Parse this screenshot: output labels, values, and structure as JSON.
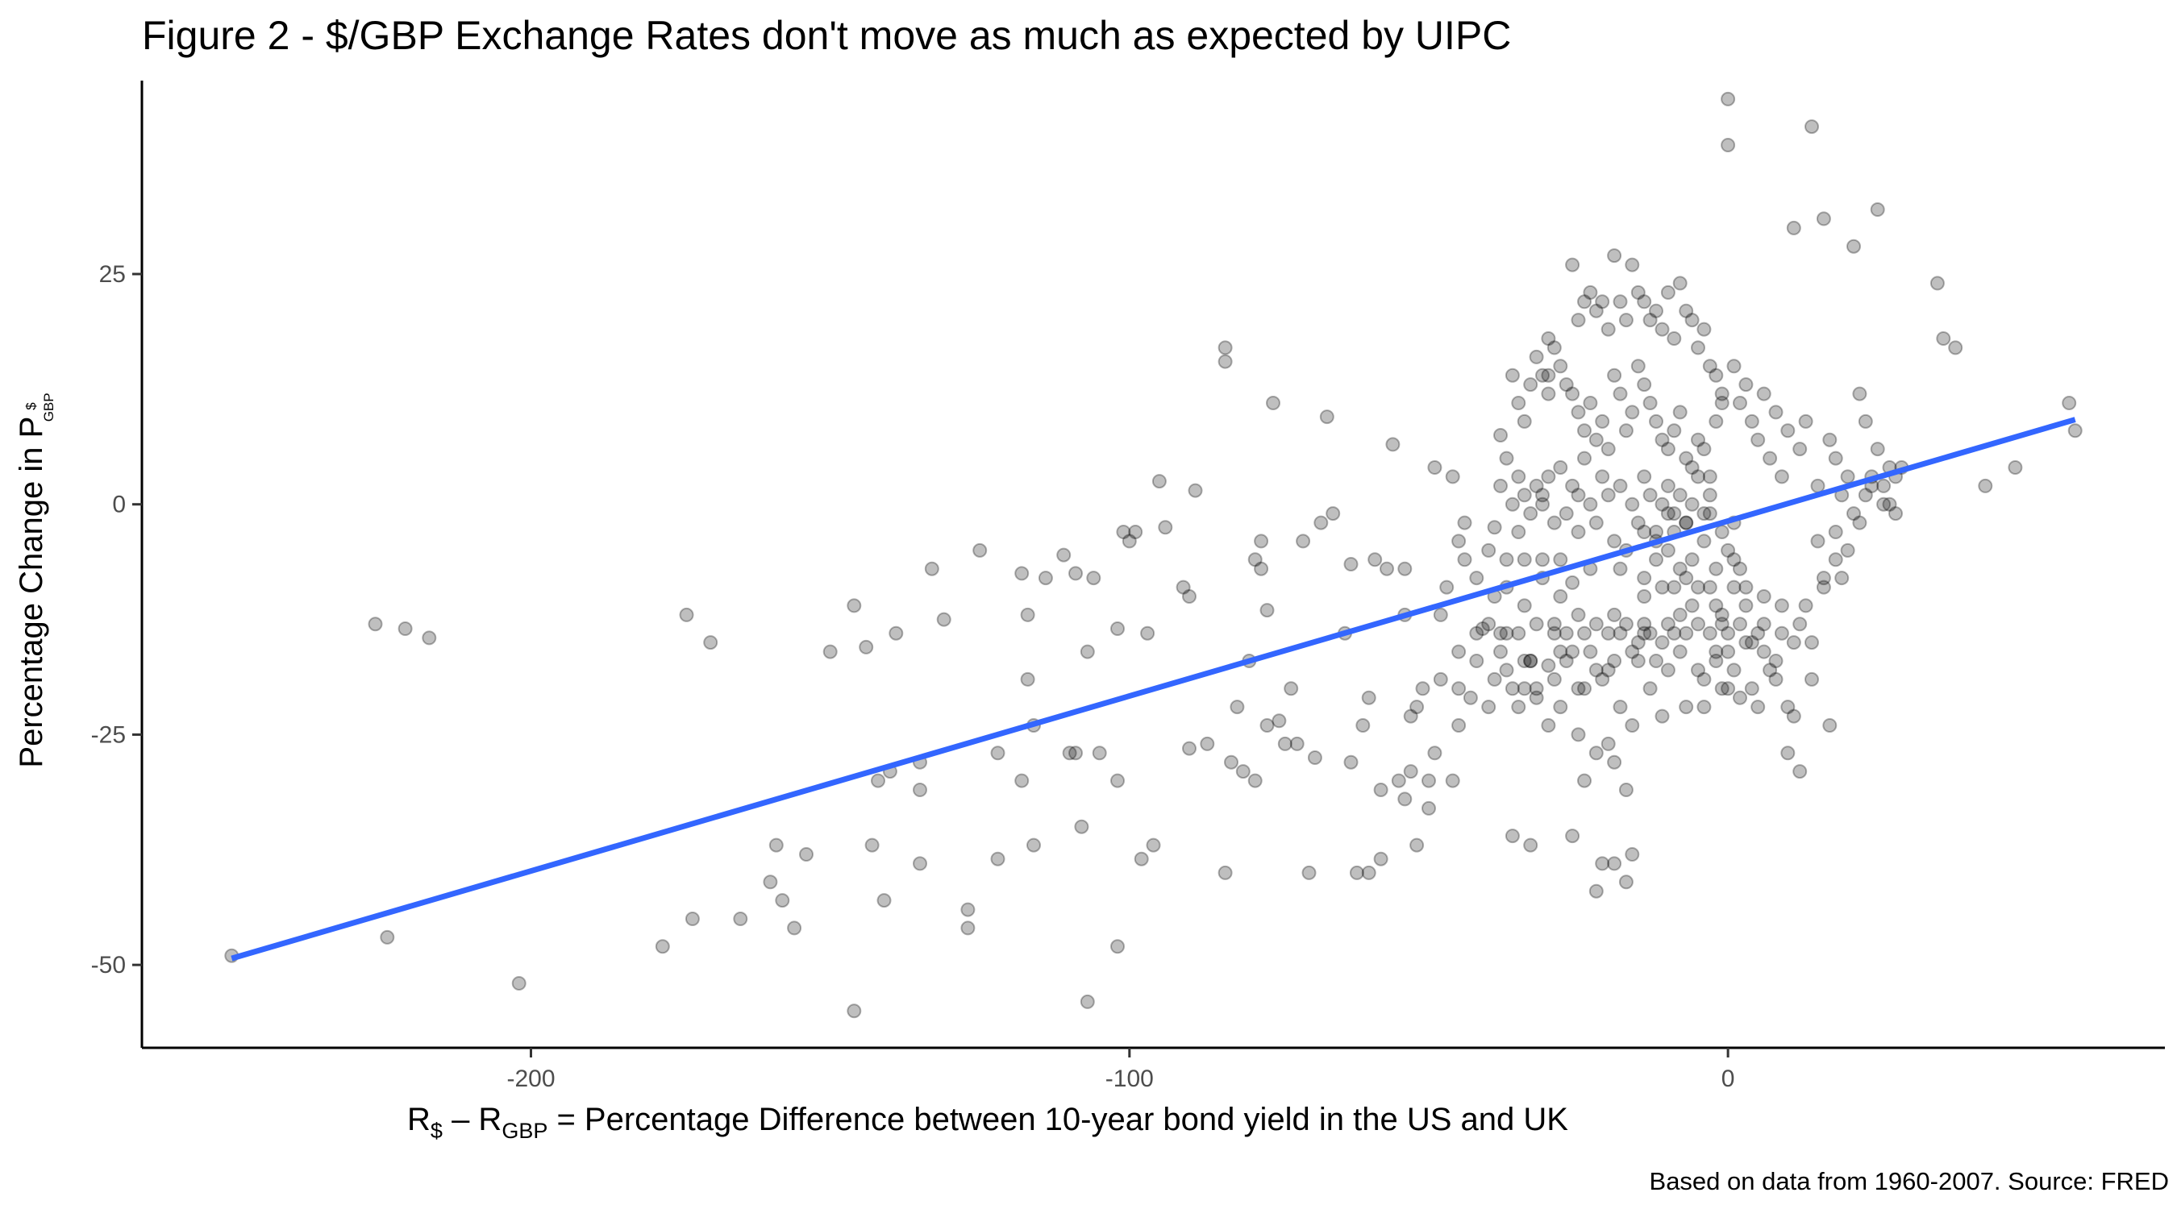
{
  "chart_data": {
    "type": "scatter",
    "title": "Figure 2 - $/GBP Exchange Rates don't move as much as expected by UIPC",
    "xlabel_parts": [
      "R",
      "$",
      " – R",
      "GBP",
      " = Percentage Difference between 10-year bond yield in the US and UK"
    ],
    "ylabel_parts": [
      "Percentage Change in P",
      "$",
      "GBP"
    ],
    "caption": "Based on data from 1960-2007. Source: FRED",
    "xlim": [
      -265,
      73
    ],
    "ylim": [
      -59,
      46
    ],
    "x_ticks": [
      -200,
      -100,
      0
    ],
    "x_tick_labels": [
      "-200",
      "-100",
      "0"
    ],
    "y_ticks": [
      -50,
      -25,
      0,
      25
    ],
    "y_tick_labels": [
      "-50",
      "-25",
      "0",
      "25"
    ],
    "grid": false,
    "point_color": "#000000",
    "trend_color": "#3366ff",
    "trend_line": {
      "x": [
        -250,
        58
      ],
      "y": [
        -49.3,
        9.2
      ]
    },
    "points": [
      [
        -250,
        -49
      ],
      [
        -226,
        -13
      ],
      [
        -224,
        -47
      ],
      [
        -221,
        -13.5
      ],
      [
        -217,
        -14.5
      ],
      [
        -202,
        -52
      ],
      [
        -178,
        -48
      ],
      [
        -174,
        -12
      ],
      [
        -173,
        -45
      ],
      [
        -170,
        -15
      ],
      [
        -165,
        -45
      ],
      [
        -160,
        -41
      ],
      [
        -159,
        -37
      ],
      [
        -158,
        -43
      ],
      [
        -156,
        -46
      ],
      [
        -154,
        -38
      ],
      [
        -150,
        -16
      ],
      [
        -146,
        -11
      ],
      [
        -146,
        -55
      ],
      [
        -144,
        -15.5
      ],
      [
        -143,
        -37
      ],
      [
        -142,
        -30
      ],
      [
        -141,
        -43
      ],
      [
        -140,
        -29
      ],
      [
        -139,
        -14
      ],
      [
        -135,
        -28
      ],
      [
        -135,
        -31
      ],
      [
        -135,
        -39
      ],
      [
        -133,
        -7
      ],
      [
        -131,
        -12.5
      ],
      [
        -127,
        -44
      ],
      [
        -127,
        -46
      ],
      [
        -125,
        -5
      ],
      [
        -122,
        -27
      ],
      [
        -122,
        -38.5
      ],
      [
        -118,
        -30
      ],
      [
        -118,
        -7.5
      ],
      [
        -117,
        -12
      ],
      [
        -117,
        -19
      ],
      [
        -116,
        -24
      ],
      [
        -116,
        -37
      ],
      [
        -114,
        -8
      ],
      [
        -111,
        -5.5
      ],
      [
        -110,
        -27
      ],
      [
        -109,
        -7.5
      ],
      [
        -109,
        -27
      ],
      [
        -108,
        -35
      ],
      [
        -107,
        -16
      ],
      [
        -107,
        -54
      ],
      [
        -106,
        -8
      ],
      [
        -105,
        -27
      ],
      [
        -102,
        -30
      ],
      [
        -102,
        -48
      ],
      [
        -102,
        -13.5
      ],
      [
        -101,
        -3
      ],
      [
        -100,
        -4
      ],
      [
        -99,
        -3
      ],
      [
        -98,
        -38.5
      ],
      [
        -97,
        -14
      ],
      [
        -96,
        -37
      ],
      [
        -95,
        2.5
      ],
      [
        -94,
        -2.5
      ],
      [
        -91,
        -9
      ],
      [
        -90,
        -26.5
      ],
      [
        -90,
        -10
      ],
      [
        -89,
        1.5
      ],
      [
        -87,
        -26
      ],
      [
        -84,
        -40
      ],
      [
        -84,
        15.5
      ],
      [
        -84,
        17
      ],
      [
        -83,
        -28
      ],
      [
        -82,
        -22
      ],
      [
        -81,
        -29
      ],
      [
        -79,
        -30
      ],
      [
        -79,
        -6
      ],
      [
        -80,
        -17
      ],
      [
        -78,
        -4
      ],
      [
        -78,
        -7
      ],
      [
        -77,
        -24
      ],
      [
        -77,
        -11.5
      ],
      [
        -76,
        11
      ],
      [
        -75,
        -23.5
      ],
      [
        -74,
        -26
      ],
      [
        -73,
        -20
      ],
      [
        -72,
        -26
      ],
      [
        -71,
        -4
      ],
      [
        -70,
        -40
      ],
      [
        -69,
        -27.5
      ],
      [
        -68,
        -2
      ],
      [
        -67,
        9.5
      ],
      [
        -66,
        -1
      ],
      [
        -64,
        -14
      ],
      [
        -63,
        -6.5
      ],
      [
        -63,
        -28
      ],
      [
        -62,
        -40
      ],
      [
        -61,
        -24
      ],
      [
        -60,
        -40
      ],
      [
        -60,
        -21
      ],
      [
        -59,
        -6
      ],
      [
        -58,
        -38.5
      ],
      [
        -58,
        -31
      ],
      [
        -57,
        -7
      ],
      [
        -56,
        6.5
      ],
      [
        -55,
        -30
      ],
      [
        -54,
        -32
      ],
      [
        -54,
        -12
      ],
      [
        -54,
        -7
      ],
      [
        -53,
        -29
      ],
      [
        -53,
        -23
      ],
      [
        -52,
        -22
      ],
      [
        -52,
        -37
      ],
      [
        -51,
        -20
      ],
      [
        -50,
        -33
      ],
      [
        -50,
        -30
      ],
      [
        -49,
        4
      ],
      [
        -49,
        -27
      ],
      [
        -48,
        -12
      ],
      [
        -48,
        -19
      ],
      [
        -47,
        -9
      ],
      [
        -46,
        3
      ],
      [
        -46,
        -30
      ],
      [
        -45,
        -16
      ],
      [
        -45,
        -24
      ],
      [
        -45,
        -20
      ],
      [
        -45,
        -4
      ],
      [
        -44,
        -2
      ],
      [
        -44,
        -6
      ],
      [
        -43,
        -21
      ],
      [
        -42,
        -14
      ],
      [
        -42,
        -17
      ],
      [
        -42,
        -8
      ],
      [
        -41,
        -13.5
      ],
      [
        -40,
        -13
      ],
      [
        -40,
        -22
      ],
      [
        -40,
        -5
      ],
      [
        -39,
        -2.5
      ],
      [
        -39,
        -10
      ],
      [
        -39,
        -19
      ],
      [
        -38,
        -14
      ],
      [
        -38,
        -16
      ],
      [
        -38,
        7.5
      ],
      [
        -37,
        -14
      ],
      [
        -37,
        -18
      ],
      [
        -37,
        -6
      ],
      [
        -37,
        -9
      ],
      [
        -36,
        -20
      ],
      [
        -36,
        -36
      ],
      [
        -35,
        3
      ],
      [
        -35,
        -14
      ],
      [
        -35,
        -22
      ],
      [
        -34,
        -17
      ],
      [
        -34,
        -20
      ],
      [
        -34,
        -6
      ],
      [
        -34,
        -11
      ],
      [
        -33,
        -37
      ],
      [
        -33,
        -17
      ],
      [
        -33,
        -17
      ],
      [
        -32,
        -21
      ],
      [
        -32,
        -13
      ],
      [
        -32,
        -20
      ],
      [
        -31,
        -6
      ],
      [
        -31,
        -8
      ],
      [
        -31,
        1
      ],
      [
        -30,
        14
      ],
      [
        -30,
        -24
      ],
      [
        -30,
        -17.5
      ],
      [
        -30,
        12
      ],
      [
        -29,
        -19
      ],
      [
        -29,
        -13
      ],
      [
        -29,
        -14
      ],
      [
        -28,
        -10
      ],
      [
        -28,
        -22
      ],
      [
        -28,
        -16
      ],
      [
        -28,
        -6
      ],
      [
        -27,
        -17
      ],
      [
        -27,
        -14
      ],
      [
        -26,
        -36
      ],
      [
        -26,
        -8.5
      ],
      [
        -26,
        -16
      ],
      [
        -25,
        -25
      ],
      [
        -25,
        -20
      ],
      [
        -25,
        -12
      ],
      [
        -25,
        1
      ],
      [
        -24,
        -14
      ],
      [
        -24,
        -20
      ],
      [
        -24,
        -30
      ],
      [
        -23,
        -16
      ],
      [
        -23,
        -7
      ],
      [
        -22,
        -13
      ],
      [
        -22,
        -18
      ],
      [
        -22,
        -27
      ],
      [
        -22,
        -42
      ],
      [
        -21,
        -39
      ],
      [
        -21,
        -19
      ],
      [
        -20,
        -14
      ],
      [
        -20,
        -18
      ],
      [
        -20,
        -26
      ],
      [
        -19,
        -39
      ],
      [
        -19,
        -28
      ],
      [
        -19,
        -17
      ],
      [
        -19,
        -12
      ],
      [
        -18,
        -7
      ],
      [
        -18,
        -14
      ],
      [
        -18,
        -22
      ],
      [
        -17,
        -13
      ],
      [
        -17,
        -41
      ],
      [
        -17,
        -31
      ],
      [
        -16,
        -38
      ],
      [
        -16,
        -24
      ],
      [
        -16,
        -16
      ],
      [
        -15,
        -15
      ],
      [
        -15,
        -17
      ],
      [
        -14,
        -14
      ],
      [
        -14,
        -10
      ],
      [
        -14,
        -13
      ],
      [
        -14,
        -8
      ],
      [
        -14,
        -3
      ],
      [
        -13,
        -14
      ],
      [
        -13,
        -20
      ],
      [
        -12,
        -17
      ],
      [
        -12,
        -6
      ],
      [
        -12,
        -4
      ],
      [
        -11,
        -15
      ],
      [
        -11,
        -23
      ],
      [
        -11,
        -9
      ],
      [
        -10,
        -13
      ],
      [
        -10,
        -5
      ],
      [
        -10,
        -18
      ],
      [
        -10,
        -1
      ],
      [
        -9,
        -9
      ],
      [
        -9,
        -14
      ],
      [
        -9,
        -3
      ],
      [
        -8,
        -12
      ],
      [
        -8,
        -7
      ],
      [
        -8,
        -16
      ],
      [
        -7,
        -14
      ],
      [
        -7,
        -8
      ],
      [
        -7,
        -2
      ],
      [
        -7,
        -22
      ],
      [
        -6,
        -11
      ],
      [
        -6,
        -6
      ],
      [
        -5,
        -13
      ],
      [
        -5,
        -9
      ],
      [
        -5,
        -18
      ],
      [
        -4,
        -19
      ],
      [
        -4,
        -4
      ],
      [
        -4,
        -22
      ],
      [
        -3,
        -9
      ],
      [
        -3,
        -14
      ],
      [
        -3,
        -1
      ],
      [
        -2,
        -17
      ],
      [
        -2,
        -11
      ],
      [
        -2,
        -7
      ],
      [
        -2,
        -16
      ],
      [
        -1,
        -20
      ],
      [
        -1,
        -13
      ],
      [
        -1,
        -3
      ],
      [
        -1,
        -12
      ],
      [
        0,
        -14
      ],
      [
        0,
        -5
      ],
      [
        0,
        -20
      ],
      [
        0,
        -16
      ],
      [
        1,
        -9
      ],
      [
        1,
        -18
      ],
      [
        1,
        -2
      ],
      [
        1,
        -6
      ],
      [
        2,
        -13
      ],
      [
        2,
        -21
      ],
      [
        2,
        -7
      ],
      [
        3,
        -15
      ],
      [
        3,
        -9
      ],
      [
        3,
        -11
      ],
      [
        4,
        -15
      ],
      [
        4,
        -20
      ],
      [
        5,
        -14
      ],
      [
        5,
        -22
      ],
      [
        6,
        -16
      ],
      [
        6,
        -13
      ],
      [
        6,
        -10
      ],
      [
        7,
        -18
      ],
      [
        8,
        -17
      ],
      [
        8,
        -19
      ],
      [
        9,
        -14
      ],
      [
        9,
        -11
      ],
      [
        10,
        -22
      ],
      [
        10,
        -27
      ],
      [
        11,
        -23
      ],
      [
        11,
        -15
      ],
      [
        12,
        -29
      ],
      [
        12,
        -13
      ],
      [
        13,
        -11
      ],
      [
        14,
        -19
      ],
      [
        14,
        -15
      ],
      [
        15,
        -4
      ],
      [
        16,
        -9
      ],
      [
        16,
        -8
      ],
      [
        17,
        -24
      ],
      [
        18,
        -3
      ],
      [
        18,
        -6
      ],
      [
        19,
        -8
      ],
      [
        20,
        -5
      ],
      [
        21,
        -1
      ],
      [
        22,
        -2
      ],
      [
        23,
        1
      ],
      [
        24,
        2
      ],
      [
        25,
        6
      ],
      [
        26,
        2
      ],
      [
        27,
        0
      ],
      [
        28,
        -1
      ],
      [
        29,
        4
      ],
      [
        -26,
        26
      ],
      [
        -25,
        20
      ],
      [
        -24,
        22
      ],
      [
        -23,
        23
      ],
      [
        -22,
        21
      ],
      [
        -21,
        22
      ],
      [
        -20,
        19
      ],
      [
        -19,
        27
      ],
      [
        -18,
        22
      ],
      [
        -17,
        20
      ],
      [
        -16,
        26
      ],
      [
        -15,
        23
      ],
      [
        -14,
        22
      ],
      [
        -13,
        20
      ],
      [
        -12,
        21
      ],
      [
        -11,
        19
      ],
      [
        -10,
        23
      ],
      [
        -9,
        18
      ],
      [
        -8,
        24
      ],
      [
        -7,
        21
      ],
      [
        -6,
        20
      ],
      [
        -5,
        17
      ],
      [
        -4,
        19
      ],
      [
        -3,
        15
      ],
      [
        -2,
        14
      ],
      [
        -1,
        12
      ],
      [
        0,
        44
      ],
      [
        0,
        39
      ],
      [
        1,
        15
      ],
      [
        2,
        11
      ],
      [
        3,
        13
      ],
      [
        4,
        9
      ],
      [
        5,
        7
      ],
      [
        6,
        12
      ],
      [
        7,
        5
      ],
      [
        8,
        10
      ],
      [
        9,
        3
      ],
      [
        10,
        8
      ],
      [
        11,
        30
      ],
      [
        12,
        6
      ],
      [
        13,
        9
      ],
      [
        14,
        41
      ],
      [
        15,
        2
      ],
      [
        16,
        31
      ],
      [
        17,
        7
      ],
      [
        18,
        5
      ],
      [
        19,
        1
      ],
      [
        20,
        3
      ],
      [
        21,
        28
      ],
      [
        22,
        12
      ],
      [
        23,
        9
      ],
      [
        24,
        3
      ],
      [
        25,
        32
      ],
      [
        26,
        0
      ],
      [
        27,
        4
      ],
      [
        28,
        3
      ],
      [
        35,
        24
      ],
      [
        36,
        18
      ],
      [
        38,
        17
      ],
      [
        43,
        2
      ],
      [
        48,
        4
      ],
      [
        57,
        11
      ],
      [
        58,
        8
      ],
      [
        -36,
        14
      ],
      [
        -35,
        11
      ],
      [
        -34,
        9
      ],
      [
        -33,
        13
      ],
      [
        -32,
        16
      ],
      [
        -31,
        14
      ],
      [
        -30,
        18
      ],
      [
        -29,
        17
      ],
      [
        -28,
        15
      ],
      [
        -27,
        13
      ],
      [
        -26,
        12
      ],
      [
        -25,
        10
      ],
      [
        -24,
        8
      ],
      [
        -23,
        11
      ],
      [
        -22,
        7
      ],
      [
        -21,
        9
      ],
      [
        -20,
        6
      ],
      [
        -19,
        14
      ],
      [
        -18,
        12
      ],
      [
        -17,
        8
      ],
      [
        -16,
        10
      ],
      [
        -15,
        15
      ],
      [
        -14,
        13
      ],
      [
        -13,
        11
      ],
      [
        -12,
        9
      ],
      [
        -11,
        7
      ],
      [
        -10,
        6
      ],
      [
        -9,
        8
      ],
      [
        -8,
        10
      ],
      [
        -7,
        5
      ],
      [
        -6,
        4
      ],
      [
        -5,
        7
      ],
      [
        -4,
        6
      ],
      [
        -3,
        3
      ],
      [
        -2,
        9
      ],
      [
        -1,
        11
      ],
      [
        -38,
        2
      ],
      [
        -37,
        5
      ],
      [
        -36,
        0
      ],
      [
        -35,
        -3
      ],
      [
        -34,
        1
      ],
      [
        -33,
        -1
      ],
      [
        -32,
        2
      ],
      [
        -31,
        0
      ],
      [
        -30,
        3
      ],
      [
        -29,
        -2
      ],
      [
        -28,
        4
      ],
      [
        -27,
        -1
      ],
      [
        -26,
        2
      ],
      [
        -25,
        -3
      ],
      [
        -24,
        5
      ],
      [
        -23,
        0
      ],
      [
        -22,
        -2
      ],
      [
        -21,
        3
      ],
      [
        -20,
        1
      ],
      [
        -19,
        -4
      ],
      [
        -18,
        2
      ],
      [
        -17,
        -5
      ],
      [
        -16,
        0
      ],
      [
        -15,
        -2
      ],
      [
        -14,
        3
      ],
      [
        -13,
        1
      ],
      [
        -12,
        -3
      ],
      [
        -11,
        0
      ],
      [
        -10,
        2
      ],
      [
        -9,
        -1
      ],
      [
        -8,
        1
      ],
      [
        -7,
        -2
      ],
      [
        -6,
        0
      ],
      [
        -5,
        3
      ],
      [
        -4,
        -1
      ],
      [
        -3,
        1
      ]
    ]
  }
}
